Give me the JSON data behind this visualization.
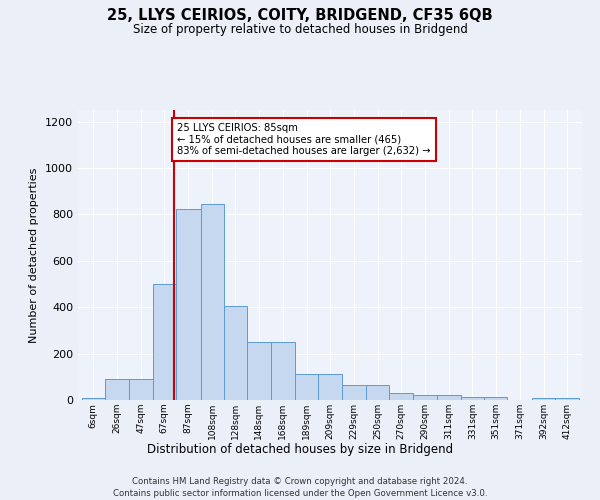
{
  "title": "25, LLYS CEIRIOS, COITY, BRIDGEND, CF35 6QB",
  "subtitle": "Size of property relative to detached houses in Bridgend",
  "xlabel": "Distribution of detached houses by size in Bridgend",
  "ylabel": "Number of detached properties",
  "bin_labels": [
    "6sqm",
    "26sqm",
    "47sqm",
    "67sqm",
    "87sqm",
    "108sqm",
    "128sqm",
    "148sqm",
    "168sqm",
    "189sqm",
    "209sqm",
    "229sqm",
    "250sqm",
    "270sqm",
    "290sqm",
    "311sqm",
    "331sqm",
    "351sqm",
    "371sqm",
    "392sqm",
    "412sqm"
  ],
  "bin_left_edges": [
    6,
    26,
    47,
    67,
    87,
    108,
    128,
    148,
    168,
    189,
    209,
    229,
    250,
    270,
    290,
    311,
    331,
    351,
    371,
    392,
    412
  ],
  "bin_widths": [
    20,
    21,
    20,
    20,
    21,
    20,
    20,
    20,
    21,
    20,
    20,
    21,
    20,
    20,
    21,
    20,
    20,
    20,
    21,
    20,
    20
  ],
  "bar_heights": [
    10,
    90,
    90,
    500,
    825,
    845,
    405,
    250,
    250,
    110,
    110,
    65,
    65,
    30,
    20,
    20,
    15,
    15,
    0,
    10,
    10
  ],
  "bar_color": "#c5d8f0",
  "bar_edge_color": "#5b9bd5",
  "property_sqm": 85,
  "annotation_title": "25 LLYS CEIRIOS: 85sqm",
  "annotation_line1": "← 15% of detached houses are smaller (465)",
  "annotation_line2": "83% of semi-detached houses are larger (2,632) →",
  "vline_color": "#cc0000",
  "annotation_box_edge": "#cc0000",
  "ylim": [
    0,
    1250
  ],
  "yticks": [
    0,
    200,
    400,
    600,
    800,
    1000,
    1200
  ],
  "footer_line1": "Contains HM Land Registry data © Crown copyright and database right 2024.",
  "footer_line2": "Contains public sector information licensed under the Open Government Licence v3.0.",
  "bg_color": "#eaeff8",
  "plot_bg_color": "#eef2fb",
  "grid_color": "#ffffff"
}
